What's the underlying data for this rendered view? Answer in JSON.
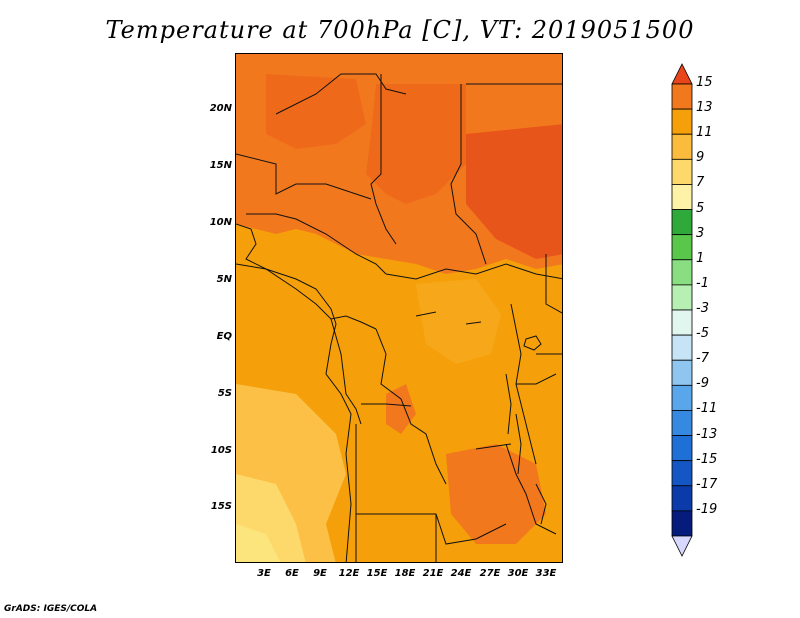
{
  "title": "Temperature at 700hPa [C], VT: 2019051500",
  "credit": "GrADS: IGES/COLA",
  "map": {
    "lat_ticks": [
      "20N",
      "15N",
      "10N",
      "5N",
      "EQ",
      "5S",
      "10S",
      "15S"
    ],
    "lon_ticks": [
      "3E",
      "6E",
      "9E",
      "12E",
      "15E",
      "18E",
      "21E",
      "24E",
      "27E",
      "30E",
      "33E"
    ],
    "field_colors": {
      "9_11": "#f5a00a",
      "11_13": "#f2781e",
      "13_15": "#e8551a",
      "7_9": "#fbc045",
      "5_7": "#fde57e"
    }
  },
  "colorbar": {
    "labels": [
      "15",
      "13",
      "11",
      "9",
      "7",
      "5",
      "3",
      "1",
      "-1",
      "-3",
      "-5",
      "-7",
      "-9",
      "-11",
      "-13",
      "-15",
      "-17",
      "-19"
    ],
    "colors": [
      "#f2781e",
      "#f5a00a",
      "#fbbb3c",
      "#fdd96c",
      "#fdf2a5",
      "#2faa3a",
      "#58c74a",
      "#8ade82",
      "#b6f0b2",
      "#e2f6f0",
      "#c6e4f6",
      "#8fc6f0",
      "#5aa6ea",
      "#3589e0",
      "#1e6fd6",
      "#1456c4",
      "#0b3ba8",
      "#061c7c"
    ],
    "top_arrow_color": "#e8451a",
    "bottom_arrow_color": "#d8d8ff"
  }
}
